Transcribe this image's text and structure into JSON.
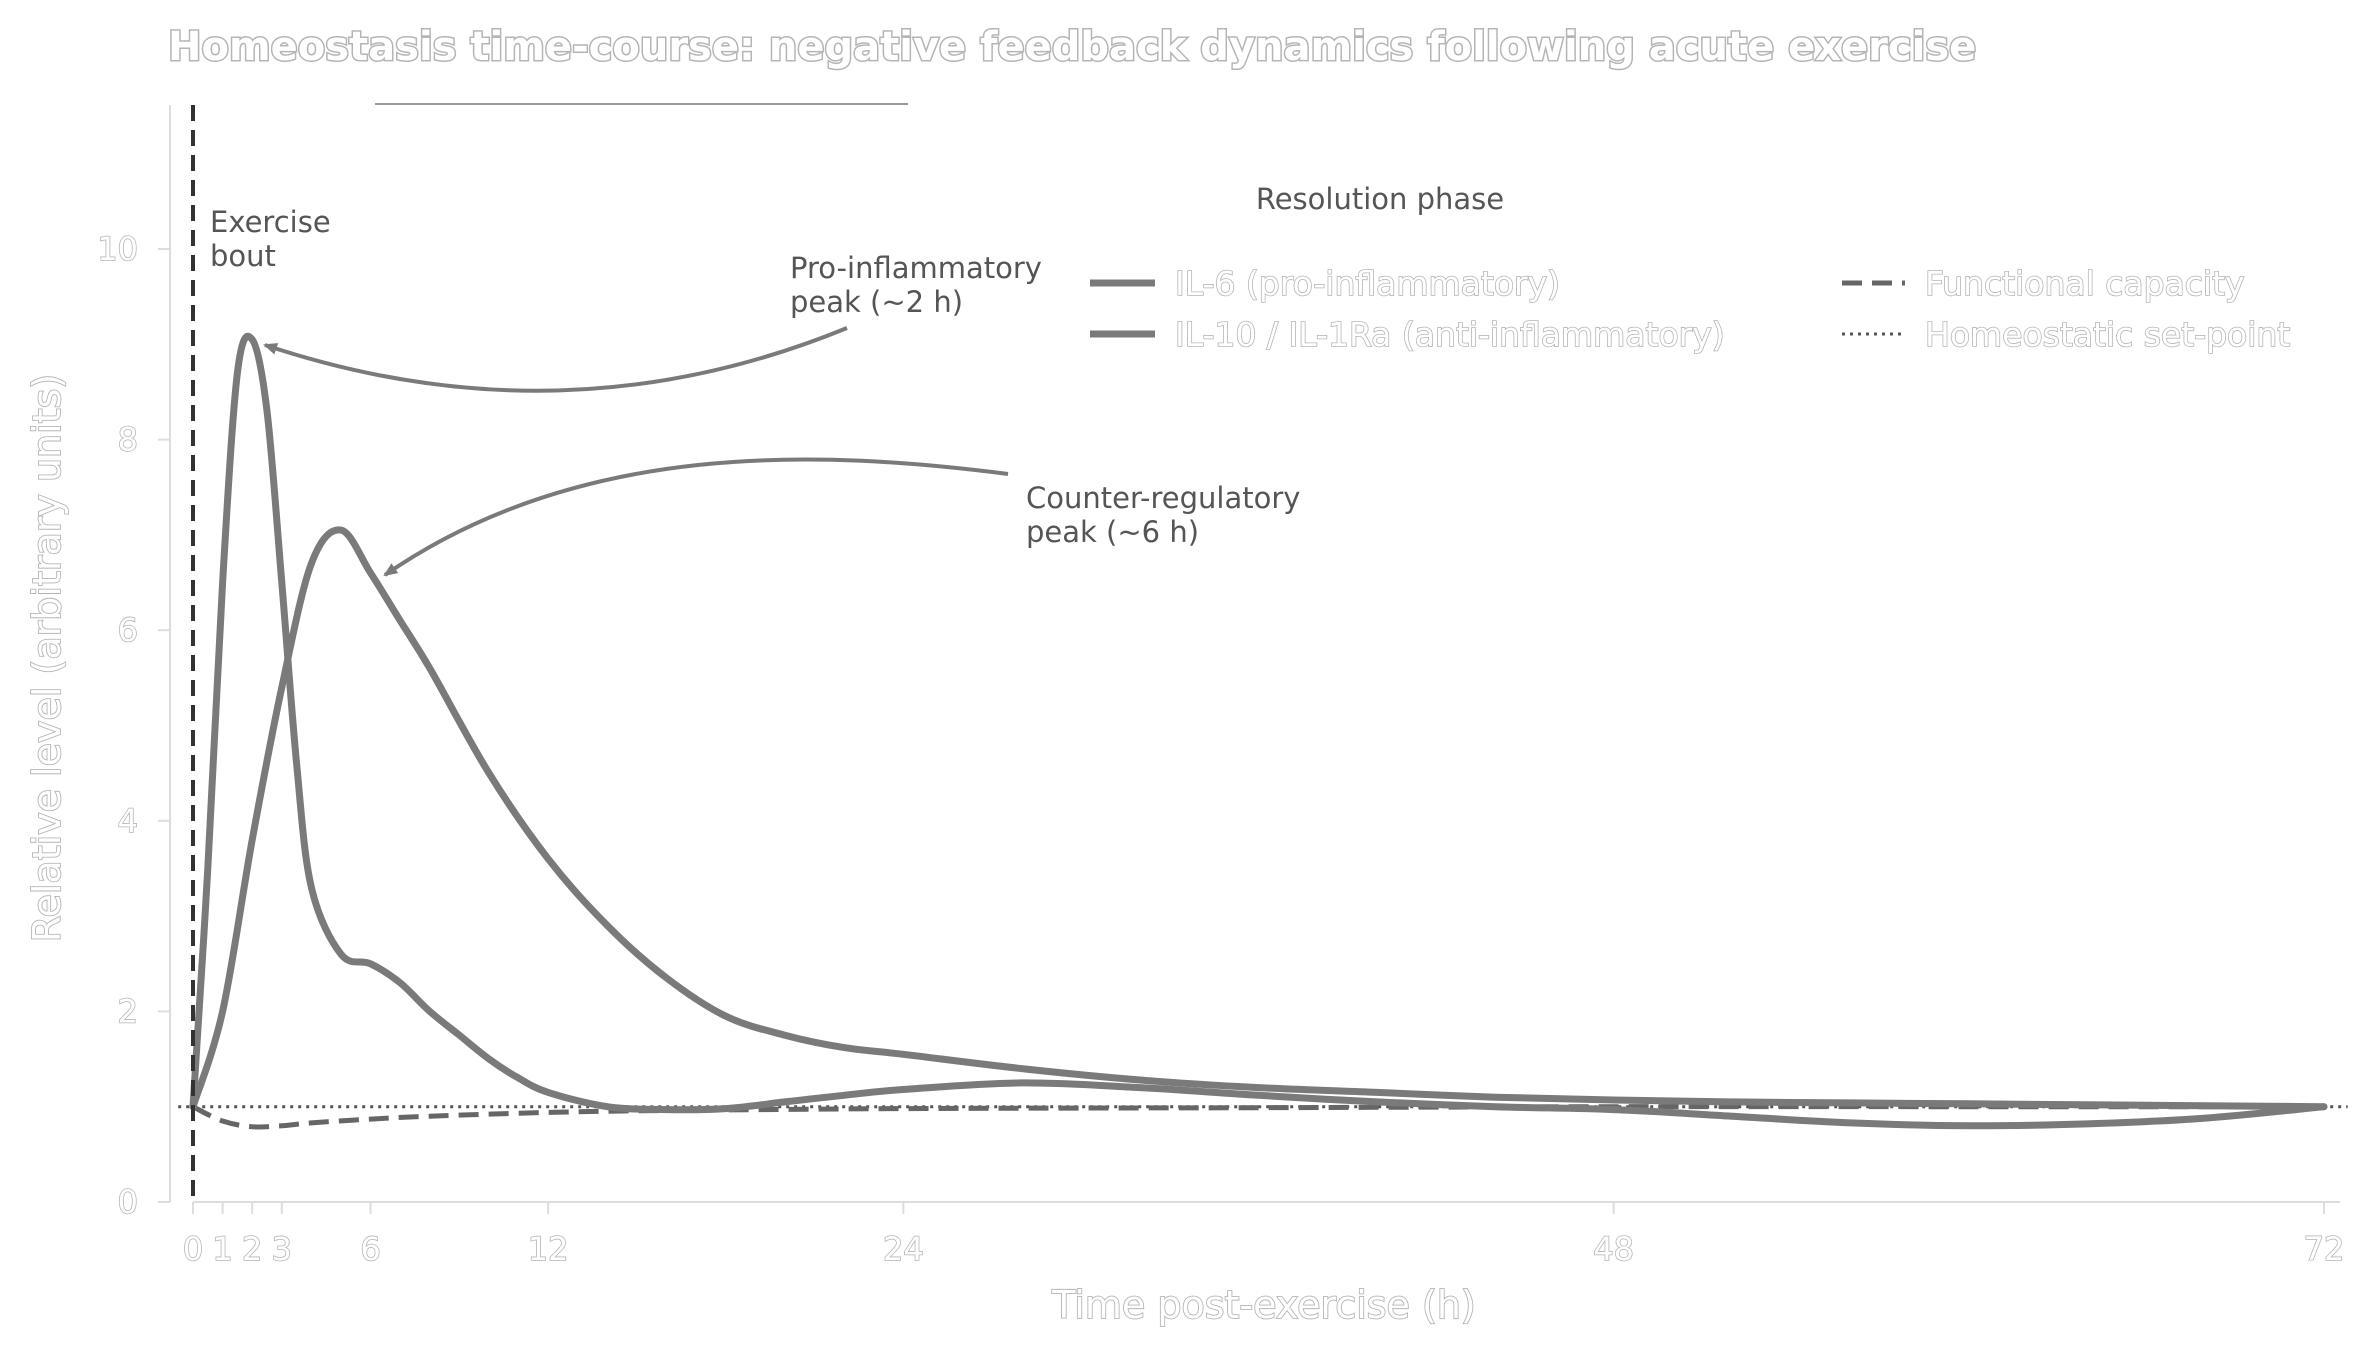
{
  "chart_data": {
    "type": "line",
    "title": "Homeostasis time-course: negative feedback dynamics following acute exercise",
    "xlabel": "Time post-exercise (h)",
    "ylabel": "Relative level (arbitrary units)",
    "xlim": [
      -0.5,
      72.8
    ],
    "ylim": [
      0,
      11.5
    ],
    "x_ticks": [
      0,
      1,
      2,
      3,
      6,
      12,
      24,
      48,
      72
    ],
    "x_tick_labels": [
      "0",
      "1",
      "2",
      "3",
      "6",
      "12",
      "24",
      "48",
      "72"
    ],
    "y_ticks": [
      0,
      2,
      4,
      6,
      8,
      10
    ],
    "y_tick_labels": [
      "0",
      "2",
      "4",
      "6",
      "8",
      "10"
    ],
    "legend_title": "Resolution phase",
    "legend_position": "top-right",
    "grid": false,
    "series": [
      {
        "name": "IL-6 (pro-inflammatory)",
        "style": "solid",
        "color": "#7a7a7a",
        "x": [
          0,
          0.5,
          1,
          1.5,
          2,
          2.5,
          3,
          3.5,
          4,
          5,
          6,
          7,
          8,
          9,
          10,
          11,
          12,
          14,
          16,
          18,
          20,
          22,
          24,
          28,
          32,
          36,
          40,
          44,
          48,
          52,
          56,
          60,
          64,
          68,
          72
        ],
        "y": [
          1.0,
          3.5,
          6.5,
          8.7,
          9.05,
          8.3,
          6.5,
          4.6,
          3.3,
          2.6,
          2.5,
          2.3,
          2.0,
          1.75,
          1.5,
          1.3,
          1.15,
          1.0,
          0.97,
          0.98,
          1.05,
          1.12,
          1.18,
          1.25,
          1.2,
          1.12,
          1.05,
          1.0,
          0.97,
          0.9,
          0.83,
          0.8,
          0.82,
          0.88,
          1.0
        ]
      },
      {
        "name": "IL-10 / IL-1Ra (anti-inflammatory)",
        "style": "solid",
        "color": "#7a7a7a",
        "x": [
          0,
          1,
          2,
          3,
          4,
          5,
          6,
          7,
          8,
          10,
          12,
          14,
          16,
          18,
          20,
          22,
          24,
          28,
          32,
          36,
          40,
          44,
          48,
          52,
          56,
          60,
          64,
          68,
          72
        ],
        "y": [
          1.0,
          2.0,
          3.8,
          5.4,
          6.7,
          7.05,
          6.6,
          6.1,
          5.6,
          4.5,
          3.6,
          2.9,
          2.35,
          1.95,
          1.75,
          1.62,
          1.55,
          1.4,
          1.28,
          1.2,
          1.15,
          1.1,
          1.07,
          1.05,
          1.04,
          1.03,
          1.02,
          1.01,
          1.0
        ]
      },
      {
        "name": "Functional capacity",
        "style": "dashed",
        "color": "#666666",
        "x": [
          0,
          1,
          2,
          3,
          4,
          6,
          8,
          12,
          16,
          24,
          36,
          48,
          60,
          72
        ],
        "y": [
          1.0,
          0.85,
          0.79,
          0.8,
          0.83,
          0.87,
          0.9,
          0.94,
          0.96,
          0.98,
          0.99,
          1.0,
          1.0,
          1.0
        ]
      },
      {
        "name": "Homeostatic set-point",
        "style": "dotted",
        "color": "#555555",
        "x": [
          -0.5,
          72.8
        ],
        "y": [
          1.0,
          1.0
        ]
      }
    ],
    "annotations": [
      {
        "text": "Exercise\nbout",
        "type": "vline",
        "x": 0
      },
      {
        "text": "Pro-inflammatory\npeak (~2 h)",
        "target_x": 2,
        "target_y": 9.05
      },
      {
        "text": "Counter-regulatory\npeak (~6 h)",
        "target_x": 6,
        "target_y": 6.6
      }
    ]
  },
  "colors": {
    "axis_line": "#dddddd",
    "exercise_line": "#333333",
    "arrow": "#7a7a7a",
    "legend_text_outline": "#b5b5b5"
  }
}
